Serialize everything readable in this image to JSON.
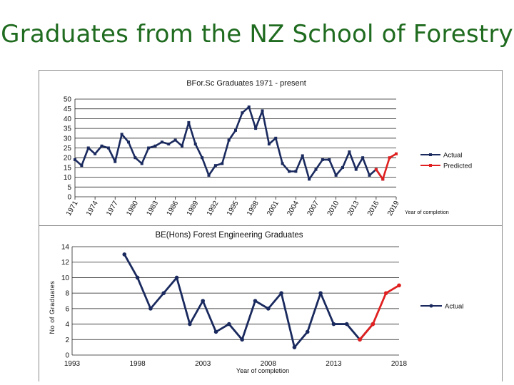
{
  "slide": {
    "title": "Graduates from the NZ School of Forestry"
  },
  "chart_data": [
    {
      "type": "line",
      "title": "BFor.Sc Graduates 1971 - present",
      "xlabel": "Year of completion",
      "ylabel": "",
      "ylim": [
        0,
        50
      ],
      "yticks": [
        0,
        5,
        10,
        15,
        20,
        25,
        30,
        35,
        40,
        45,
        50
      ],
      "xtick_labels": [
        "1971",
        "1974",
        "1977",
        "1980",
        "1983",
        "1986",
        "1989",
        "1992",
        "1995",
        "1998",
        "2001",
        "2004",
        "2007",
        "2010",
        "2013",
        "2016",
        "2019"
      ],
      "grid": "horizontal",
      "legend": "right",
      "series": [
        {
          "name": "Actual",
          "color": "#1a2a5e",
          "x": [
            1971,
            1972,
            1973,
            1974,
            1975,
            1976,
            1977,
            1978,
            1979,
            1980,
            1981,
            1982,
            1983,
            1984,
            1985,
            1986,
            1987,
            1988,
            1989,
            1990,
            1991,
            1992,
            1993,
            1994,
            1995,
            1996,
            1997,
            1998,
            1999,
            2000,
            2001,
            2002,
            2003,
            2004,
            2005,
            2006,
            2007,
            2008,
            2009,
            2010,
            2011,
            2012,
            2013,
            2014,
            2015,
            2016,
            2017
          ],
          "values": [
            19,
            16,
            25,
            22,
            26,
            25,
            18,
            32,
            28,
            20,
            17,
            25,
            26,
            28,
            27,
            29,
            26,
            38,
            27,
            20,
            11,
            16,
            17,
            29,
            34,
            43,
            46,
            35,
            44,
            27,
            30,
            17,
            13,
            13,
            21,
            9,
            14,
            19,
            19,
            11,
            15,
            23,
            14,
            20,
            11,
            14,
            9
          ]
        },
        {
          "name": "Predicted",
          "color": "#e02020",
          "x": [
            2016,
            2017,
            2018,
            2019
          ],
          "values": [
            14,
            9,
            20,
            22
          ]
        }
      ]
    },
    {
      "type": "line",
      "title": "BE(Hons) Forest Engineering Graduates",
      "xlabel": "Year of completion",
      "ylabel": "No of Graduates",
      "ylim": [
        0,
        14
      ],
      "xlim": [
        1993,
        2018
      ],
      "yticks": [
        0,
        2,
        4,
        6,
        8,
        10,
        12,
        14
      ],
      "xticks": [
        1993,
        1998,
        2003,
        2008,
        2013,
        2018
      ],
      "grid": "horizontal",
      "legend": "right",
      "series": [
        {
          "name": "Actual",
          "color": "#1a2a5e",
          "x": [
            1997,
            1998,
            1999,
            2000,
            2001,
            2002,
            2003,
            2004,
            2005,
            2006,
            2007,
            2008,
            2009,
            2010,
            2011,
            2012,
            2013,
            2014,
            2015,
            2016
          ],
          "values": [
            13,
            10,
            6,
            8,
            10,
            4,
            7,
            3,
            4,
            2,
            7,
            6,
            8,
            1,
            3,
            8,
            4,
            4,
            2,
            4
          ]
        },
        {
          "name": "",
          "color": "#e02020",
          "x": [
            2015,
            2016,
            2017,
            2018
          ],
          "values": [
            2,
            4,
            8,
            9
          ]
        }
      ]
    }
  ]
}
